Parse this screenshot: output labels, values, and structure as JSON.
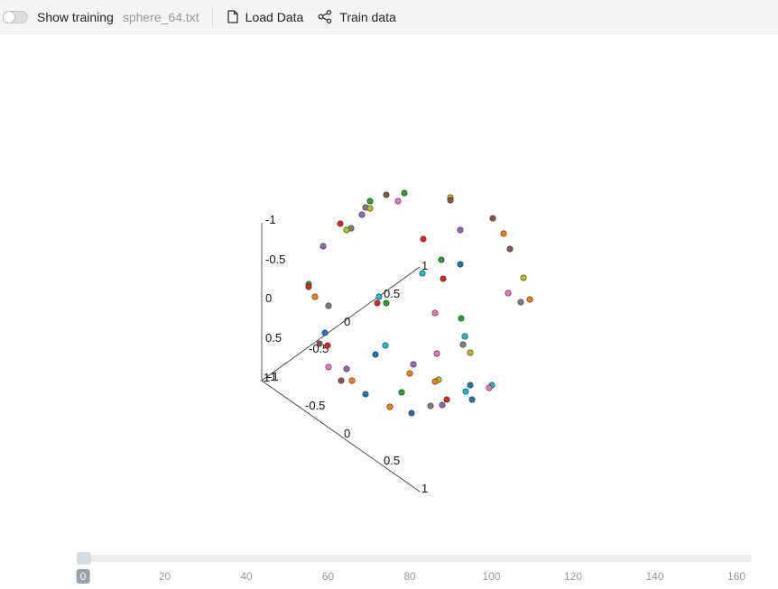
{
  "toolbar": {
    "show_training_label": "Show training",
    "show_training_on": false,
    "file_name": "sphere_64.txt",
    "load_data_label": "Load Data",
    "train_data_label": "Train data"
  },
  "plot": {
    "axis_y_ticks": [
      "-1",
      "-0.5",
      "0",
      "0.5",
      "1"
    ],
    "axis_x_ticks": [
      "-1",
      "-0.5",
      "0",
      "0.5",
      "1"
    ],
    "axis_z_ticks": [
      "-1",
      "-0.5",
      "0",
      "0.5",
      "1"
    ],
    "palette": [
      "#1f77b4",
      "#ff7f0e",
      "#2ca02c",
      "#d62728",
      "#9467bd",
      "#8c564b",
      "#e377c2",
      "#7f7f7f",
      "#bcbd22",
      "#17becf"
    ]
  },
  "timeline": {
    "ticks": [
      "0",
      "20",
      "40",
      "60",
      "80",
      "100",
      "120",
      "140",
      "160"
    ],
    "current": "0",
    "min": 0,
    "max": 162
  }
}
